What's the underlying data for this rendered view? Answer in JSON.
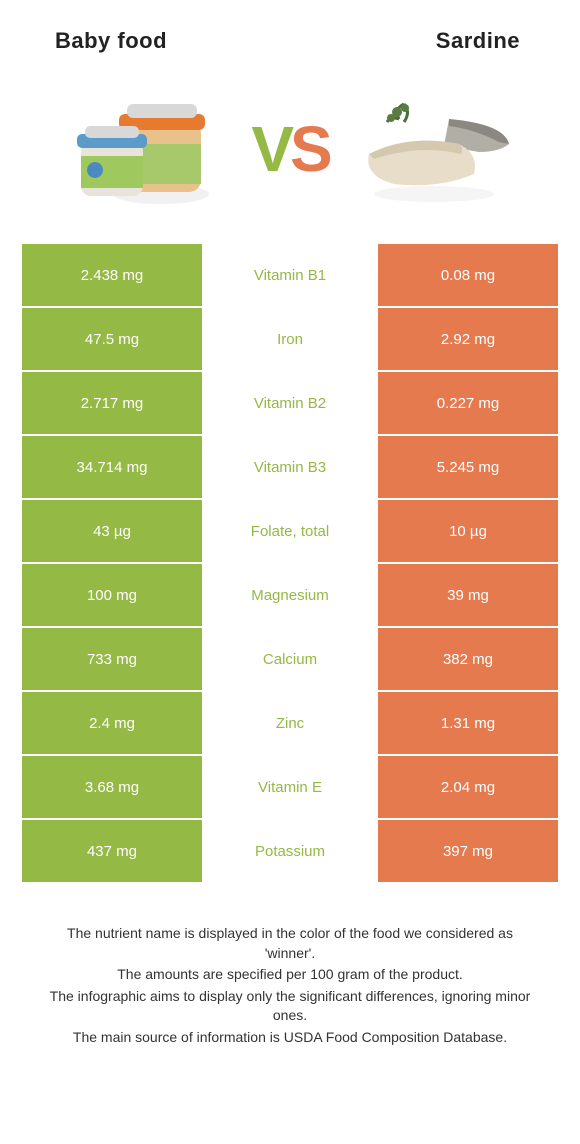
{
  "colors": {
    "left": "#94b945",
    "right": "#e67a4f",
    "middle_bg": "#ffffff"
  },
  "header": {
    "left_title": "Baby food",
    "right_title": "Sardine"
  },
  "vs": {
    "v": "V",
    "s": "S"
  },
  "rows": [
    {
      "left": "2.438 mg",
      "label": "Vitamin B1",
      "right": "0.08 mg",
      "winner": "left"
    },
    {
      "left": "47.5 mg",
      "label": "Iron",
      "right": "2.92 mg",
      "winner": "left"
    },
    {
      "left": "2.717 mg",
      "label": "Vitamin B2",
      "right": "0.227 mg",
      "winner": "left"
    },
    {
      "left": "34.714 mg",
      "label": "Vitamin B3",
      "right": "5.245 mg",
      "winner": "left"
    },
    {
      "left": "43 µg",
      "label": "Folate, total",
      "right": "10 µg",
      "winner": "left"
    },
    {
      "left": "100 mg",
      "label": "Magnesium",
      "right": "39 mg",
      "winner": "left"
    },
    {
      "left": "733 mg",
      "label": "Calcium",
      "right": "382 mg",
      "winner": "left"
    },
    {
      "left": "2.4 mg",
      "label": "Zinc",
      "right": "1.31 mg",
      "winner": "left"
    },
    {
      "left": "3.68 mg",
      "label": "Vitamin E",
      "right": "2.04 mg",
      "winner": "left"
    },
    {
      "left": "437 mg",
      "label": "Potassium",
      "right": "397 mg",
      "winner": "left"
    }
  ],
  "footer": {
    "line1": "The nutrient name is displayed in the color of the food we considered as 'winner'.",
    "line2": "The amounts are specified per 100 gram of the product.",
    "line3": "The infographic aims to display only the significant differences, ignoring minor ones.",
    "line4": "The main source of information is USDA Food Composition Database."
  }
}
